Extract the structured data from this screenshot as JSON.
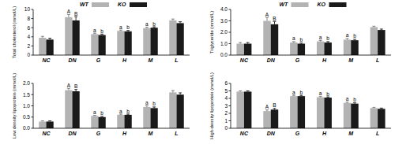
{
  "chart_data": [
    {
      "type": "bar",
      "y_label": "Total cholesterol (mmol/L)",
      "categories": [
        "NC",
        "DN",
        "G",
        "H",
        "M",
        "L"
      ],
      "series": [
        {
          "name": "WT",
          "color": "#b3b3b3",
          "values": [
            3.8,
            8.3,
            4.6,
            5.3,
            5.9,
            7.6
          ],
          "errors": [
            0.3,
            0.6,
            0.2,
            0.2,
            0.2,
            0.3
          ],
          "letters": [
            null,
            "A",
            "a",
            "a",
            "a",
            null
          ]
        },
        {
          "name": "KO",
          "color": "#1a1a1a",
          "values": [
            3.4,
            7.6,
            4.4,
            5.2,
            6.0,
            7.0
          ],
          "errors": [
            0.3,
            0.8,
            0.2,
            0.2,
            0.2,
            0.3
          ],
          "letters": [
            null,
            "B",
            "b",
            "b",
            "b",
            null
          ]
        }
      ],
      "ylim": [
        0,
        10
      ],
      "yticks": [
        0,
        2,
        4,
        6,
        8,
        10
      ],
      "legend": "top"
    },
    {
      "type": "bar",
      "y_label": "Triglyceride (mmol/L)",
      "categories": [
        "NC",
        "DN",
        "G",
        "H",
        "M",
        "L"
      ],
      "series": [
        {
          "name": "WT",
          "color": "#b3b3b3",
          "values": [
            1.0,
            3.0,
            1.1,
            1.2,
            1.35,
            2.45
          ],
          "errors": [
            0.1,
            0.3,
            0.08,
            0.08,
            0.1,
            0.08
          ],
          "letters": [
            null,
            "A",
            "a",
            "a",
            "a",
            null
          ]
        },
        {
          "name": "KO",
          "color": "#1a1a1a",
          "values": [
            1.0,
            2.7,
            1.0,
            1.1,
            1.3,
            2.2
          ],
          "errors": [
            0.1,
            0.25,
            0.05,
            0.08,
            0.08,
            0.08
          ],
          "letters": [
            null,
            "B",
            "b",
            "b",
            "b",
            null
          ]
        }
      ],
      "ylim": [
        0,
        4
      ],
      "yticks": [
        {
          "value": 0,
          "label": "0.0"
        },
        {
          "value": 1,
          "label": "1.0"
        },
        {
          "value": 2,
          "label": "2.0"
        },
        {
          "value": 3,
          "label": "3.0"
        },
        {
          "value": 4,
          "label": "4.0"
        }
      ],
      "legend": "top"
    },
    {
      "type": "bar",
      "y_label": "Low density lipoprotein (mmol/L)",
      "categories": [
        "NC",
        "DN",
        "G",
        "H",
        "M",
        "L"
      ],
      "series": [
        {
          "name": "WT",
          "color": "#b3b3b3",
          "values": [
            0.3,
            1.7,
            0.55,
            0.6,
            0.95,
            1.6
          ],
          "errors": [
            0.03,
            0.08,
            0.03,
            0.03,
            0.05,
            0.08
          ],
          "letters": [
            null,
            "A",
            "a",
            "a",
            "a",
            null
          ]
        },
        {
          "name": "KO",
          "color": "#1a1a1a",
          "values": [
            0.3,
            1.65,
            0.5,
            0.6,
            0.9,
            1.5
          ],
          "errors": [
            0.03,
            0.08,
            0.03,
            0.03,
            0.05,
            0.08
          ],
          "letters": [
            null,
            "B",
            "b",
            "b",
            "b",
            null
          ]
        }
      ],
      "ylim": [
        0,
        2
      ],
      "yticks": [
        {
          "value": 0,
          "label": "0.0"
        },
        0.5,
        {
          "value": 1,
          "label": "1.0"
        },
        1.5,
        {
          "value": 2,
          "label": "2.0"
        }
      ]
    },
    {
      "type": "bar",
      "y_label": "High-density lipoprotein (mmol/L)",
      "categories": [
        "NC",
        "DN",
        "G",
        "H",
        "M",
        "L"
      ],
      "series": [
        {
          "name": "WT",
          "color": "#b3b3b3",
          "values": [
            4.9,
            2.3,
            4.3,
            4.15,
            3.4,
            2.7
          ],
          "errors": [
            0.1,
            0.15,
            0.1,
            0.1,
            0.1,
            0.1
          ],
          "letters": [
            null,
            "A",
            "a",
            "a",
            "a",
            null
          ]
        },
        {
          "name": "KO",
          "color": "#1a1a1a",
          "values": [
            4.9,
            2.5,
            4.3,
            4.1,
            3.3,
            2.6
          ],
          "errors": [
            0.1,
            0.15,
            0.1,
            0.1,
            0.1,
            0.1
          ],
          "letters": [
            null,
            "B",
            "b",
            "b",
            "b",
            null
          ]
        }
      ],
      "ylim": [
        0,
        6
      ],
      "yticks": [
        0,
        1,
        2,
        3,
        4,
        5,
        6
      ]
    }
  ]
}
